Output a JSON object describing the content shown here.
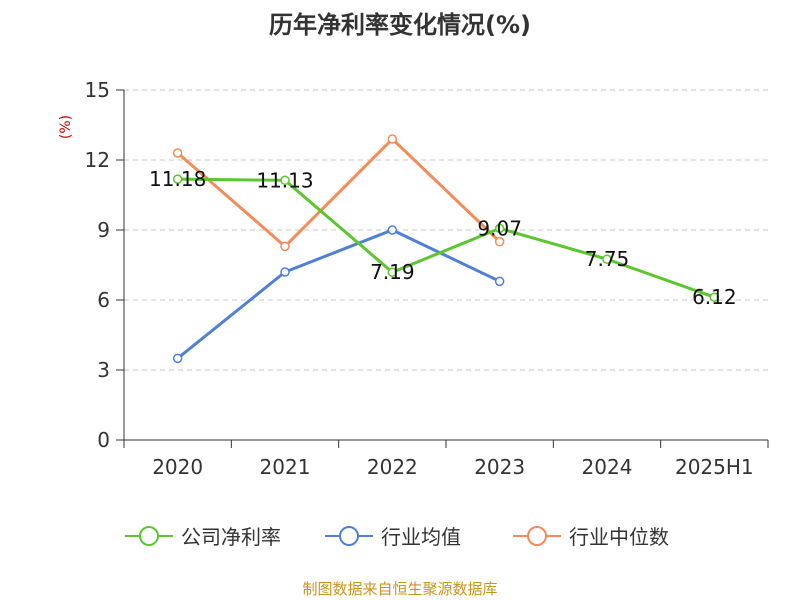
{
  "chart_data": {
    "type": "line",
    "title": "历年净利率变化情况(%)",
    "ylabel": "(%)",
    "xlabel": "",
    "categories": [
      "2020",
      "2021",
      "2022",
      "2023",
      "2024",
      "2025H1"
    ],
    "y_ticks": [
      "0",
      "3",
      "6",
      "9",
      "12",
      "15"
    ],
    "ylim": [
      0,
      15
    ],
    "grid": true,
    "legend_position": "bottom",
    "series": [
      {
        "name": "公司净利率",
        "color": "#5cc630",
        "values": [
          11.18,
          11.13,
          7.19,
          9.07,
          7.75,
          6.12
        ],
        "labels": [
          "11.18",
          "11.13",
          "7.19",
          "9.07",
          "7.75",
          "6.12"
        ]
      },
      {
        "name": "行业均值",
        "color": "#4f80d6",
        "values": [
          3.5,
          7.2,
          9.0,
          6.8,
          null,
          null
        ]
      },
      {
        "name": "行业中位数",
        "color": "#f48c5a",
        "values": [
          12.3,
          8.3,
          12.9,
          8.5,
          null,
          null
        ]
      }
    ]
  },
  "footer": "制图数据来自恒生聚源数据库"
}
